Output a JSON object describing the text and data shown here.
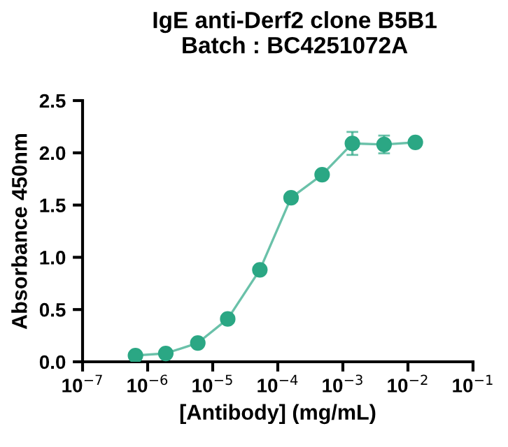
{
  "chart_data": {
    "type": "line",
    "title": "IgE anti-Derf2 clone B5B1\nBatch : BC4251072A",
    "xlabel": "[Antibody] (mg/mL)",
    "ylabel": "Absorbance 450nm",
    "log": "x",
    "marker": "circle",
    "line_style": "solid",
    "grid": false,
    "legend": false,
    "x": [
      6.5e-07,
      1.9e-06,
      5.9e-06,
      1.7e-05,
      5.3e-05,
      0.00016,
      0.00048,
      0.0014,
      0.0043,
      0.013
    ],
    "series": [
      {
        "color": "#2ba784",
        "values": [
          0.06,
          0.08,
          0.18,
          0.41,
          0.88,
          1.57,
          1.79,
          2.09,
          2.08,
          2.1
        ],
        "errors": [
          null,
          null,
          null,
          null,
          null,
          null,
          0.04,
          0.11,
          0.085,
          null
        ]
      }
    ],
    "xlim": [
      1e-07,
      0.1
    ],
    "xticks": [
      {
        "value": 1e-07,
        "label": "10$^{−7}$"
      },
      {
        "value": 1e-06,
        "label": "10$^{−6}$"
      },
      {
        "value": 1e-05,
        "label": "10$^{−5}$"
      },
      {
        "value": 0.0001,
        "label": "10$^{−4}$"
      },
      {
        "value": 0.001,
        "label": "10$^{−3}$"
      },
      {
        "value": 0.01,
        "label": "10$^{−2}$"
      },
      {
        "value": 0.1,
        "label": "10$^{−1}$"
      }
    ],
    "ylim": [
      0,
      2.5
    ],
    "yticks": [
      {
        "value": 0,
        "label": "0.0"
      },
      {
        "value": 0.5,
        "label": "0.5"
      },
      {
        "value": 1.0,
        "label": "1.0"
      },
      {
        "value": 1.5,
        "label": "1.5"
      },
      {
        "value": 2.0,
        "label": "2.0"
      },
      {
        "value": 2.5,
        "label": "2.5"
      }
    ]
  }
}
